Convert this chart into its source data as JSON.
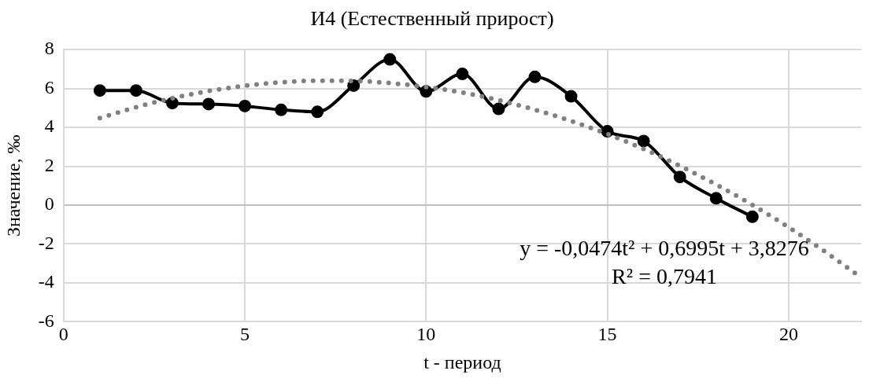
{
  "chart_data": {
    "type": "line",
    "title": "И4 (Естественный прирост)",
    "xlabel": "t - период",
    "ylabel": "Значение, ‰",
    "xlim": [
      0,
      22
    ],
    "xticks": [
      0,
      5,
      10,
      15,
      20
    ],
    "ylim": [
      -6,
      8
    ],
    "yticks": [
      -6,
      -4,
      -2,
      0,
      2,
      4,
      6,
      8
    ],
    "grid": true,
    "legend": false,
    "series": [
      {
        "color": "#000000",
        "marker": "circle",
        "line_style": "solid",
        "x": [
          1,
          2,
          3,
          4,
          5,
          6,
          7,
          8,
          9,
          10,
          11,
          12,
          13,
          14,
          15,
          16,
          17,
          18,
          19
        ],
        "values": [
          5.9,
          5.9,
          5.25,
          5.2,
          5.1,
          4.9,
          4.8,
          6.15,
          7.5,
          5.85,
          6.75,
          4.95,
          6.6,
          5.6,
          3.8,
          3.3,
          1.45,
          0.35,
          -0.6
        ]
      },
      {
        "color": "#808080",
        "marker": "none",
        "line_style": "dotted",
        "x": [
          1,
          2,
          3,
          4,
          5,
          6,
          7,
          8,
          9,
          10,
          11,
          12,
          13,
          14,
          15,
          16,
          17,
          18,
          19,
          20,
          21,
          22
        ],
        "values": [
          4.48,
          5.04,
          5.5,
          5.87,
          6.14,
          6.32,
          6.4,
          6.39,
          6.28,
          6.08,
          5.79,
          5.4,
          4.91,
          4.33,
          3.66,
          2.89,
          2.02,
          1.06,
          0.01,
          -1.14,
          -2.39,
          -3.72
        ]
      }
    ],
    "annotations": [
      "y = -0,0474t² + 0,6995t + 3,8276",
      "R² = 0,7941"
    ]
  }
}
